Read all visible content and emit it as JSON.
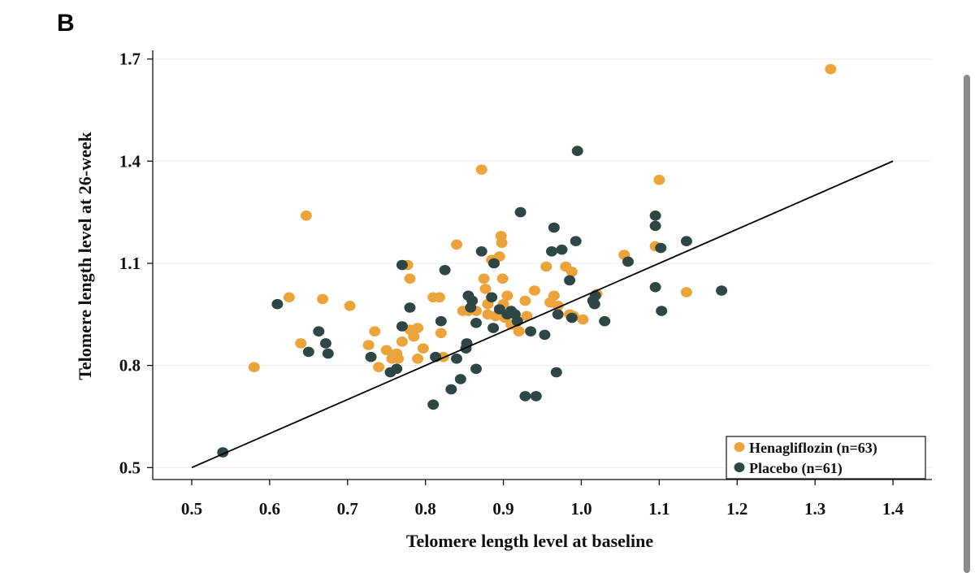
{
  "panel_label": "B",
  "colors": {
    "henagliflozin": "#EBA33A",
    "placebo": "#2F4744",
    "axis": "#111111",
    "grid": "#EDEDED",
    "fit_line": "#000000"
  },
  "chart_data": {
    "type": "scatter",
    "xlabel": "Telomere length level at baseline",
    "ylabel": "Telomere length level at 26-week",
    "xlim": [
      0.45,
      1.45
    ],
    "ylim": [
      0.465,
      1.73
    ],
    "xticks": [
      "0.5",
      "0.6",
      "0.7",
      "0.8",
      "0.9",
      "1.0",
      "1.1",
      "1.2",
      "1.3",
      "1.4"
    ],
    "yticks": [
      "0.5",
      "0.8",
      "1.1",
      "1.4",
      "1.7"
    ],
    "legend_position": "bottom-right",
    "reference_line": {
      "from": [
        0.5,
        0.5
      ],
      "to": [
        1.4,
        1.4
      ]
    },
    "series": [
      {
        "name": "Henagliflozin (n=63)",
        "color": "#EBA33A",
        "points": [
          [
            0.58,
            0.795
          ],
          [
            0.625,
            1.0
          ],
          [
            0.64,
            0.865
          ],
          [
            0.647,
            1.24
          ],
          [
            0.668,
            0.995
          ],
          [
            0.703,
            0.975
          ],
          [
            0.727,
            0.86
          ],
          [
            0.735,
            0.9
          ],
          [
            0.74,
            0.795
          ],
          [
            0.75,
            0.845
          ],
          [
            0.757,
            0.82
          ],
          [
            0.763,
            0.835
          ],
          [
            0.77,
            0.87
          ],
          [
            0.777,
            1.095
          ],
          [
            0.78,
            1.055
          ],
          [
            0.78,
            0.905
          ],
          [
            0.785,
            0.885
          ],
          [
            0.79,
            0.82
          ],
          [
            0.79,
            0.91
          ],
          [
            0.797,
            0.85
          ],
          [
            0.81,
            1.0
          ],
          [
            0.818,
            1.0
          ],
          [
            0.82,
            0.895
          ],
          [
            0.823,
            0.825
          ],
          [
            0.84,
            1.155
          ],
          [
            0.848,
            0.96
          ],
          [
            0.855,
            0.96
          ],
          [
            0.865,
            0.96
          ],
          [
            0.872,
            1.375
          ],
          [
            0.875,
            1.055
          ],
          [
            0.877,
            1.025
          ],
          [
            0.88,
            0.98
          ],
          [
            0.88,
            0.95
          ],
          [
            0.885,
            1.11
          ],
          [
            0.89,
            0.945
          ],
          [
            0.895,
            1.12
          ],
          [
            0.897,
            1.18
          ],
          [
            0.898,
            1.16
          ],
          [
            0.899,
            1.055
          ],
          [
            0.9,
            0.98
          ],
          [
            0.902,
            0.94
          ],
          [
            0.905,
            1.005
          ],
          [
            0.91,
            0.92
          ],
          [
            0.92,
            0.9
          ],
          [
            0.928,
            0.99
          ],
          [
            0.93,
            0.945
          ],
          [
            0.94,
            1.02
          ],
          [
            0.955,
            1.09
          ],
          [
            0.96,
            0.985
          ],
          [
            0.965,
            1.005
          ],
          [
            0.97,
            0.975
          ],
          [
            0.98,
            1.09
          ],
          [
            0.988,
            1.075
          ],
          [
            0.985,
            0.95
          ],
          [
            0.99,
            0.945
          ],
          [
            1.002,
            0.935
          ],
          [
            1.02,
            1.01
          ],
          [
            1.055,
            1.125
          ],
          [
            1.095,
            1.15
          ],
          [
            1.1,
            1.345
          ],
          [
            1.135,
            1.015
          ],
          [
            1.32,
            1.67
          ],
          [
            0.765,
            0.82
          ]
        ]
      },
      {
        "name": "Placebo (n=61)",
        "color": "#2F4744",
        "points": [
          [
            0.54,
            0.545
          ],
          [
            0.61,
            0.98
          ],
          [
            0.65,
            0.84
          ],
          [
            0.663,
            0.9
          ],
          [
            0.672,
            0.865
          ],
          [
            0.675,
            0.835
          ],
          [
            0.73,
            0.825
          ],
          [
            0.755,
            0.78
          ],
          [
            0.763,
            0.79
          ],
          [
            0.77,
            1.095
          ],
          [
            0.77,
            0.915
          ],
          [
            0.78,
            0.97
          ],
          [
            0.81,
            0.685
          ],
          [
            0.813,
            0.825
          ],
          [
            0.82,
            0.93
          ],
          [
            0.825,
            1.08
          ],
          [
            0.833,
            0.73
          ],
          [
            0.84,
            0.82
          ],
          [
            0.845,
            0.76
          ],
          [
            0.852,
            0.85
          ],
          [
            0.853,
            0.865
          ],
          [
            0.855,
            1.005
          ],
          [
            0.858,
            0.97
          ],
          [
            0.86,
            0.99
          ],
          [
            0.865,
            0.79
          ],
          [
            0.865,
            0.925
          ],
          [
            0.872,
            1.135
          ],
          [
            0.885,
            1.0
          ],
          [
            0.887,
            0.91
          ],
          [
            0.888,
            1.1
          ],
          [
            0.895,
            0.965
          ],
          [
            0.905,
            0.95
          ],
          [
            0.918,
            0.93
          ],
          [
            0.915,
            0.95
          ],
          [
            0.922,
            1.25
          ],
          [
            0.928,
            0.71
          ],
          [
            0.935,
            0.9
          ],
          [
            0.942,
            0.71
          ],
          [
            0.953,
            0.89
          ],
          [
            0.962,
            1.135
          ],
          [
            0.965,
            1.205
          ],
          [
            0.968,
            0.78
          ],
          [
            0.97,
            0.95
          ],
          [
            0.975,
            1.14
          ],
          [
            0.985,
            1.05
          ],
          [
            0.988,
            0.94
          ],
          [
            0.993,
            1.165
          ],
          [
            0.995,
            1.43
          ],
          [
            1.015,
            0.99
          ],
          [
            1.017,
            0.98
          ],
          [
            1.018,
            1.005
          ],
          [
            1.03,
            0.93
          ],
          [
            1.06,
            1.105
          ],
          [
            1.095,
            1.24
          ],
          [
            1.095,
            1.21
          ],
          [
            1.095,
            1.03
          ],
          [
            1.102,
            1.145
          ],
          [
            1.103,
            0.96
          ],
          [
            1.135,
            1.165
          ],
          [
            1.18,
            1.02
          ],
          [
            0.91,
            0.96
          ]
        ]
      }
    ]
  }
}
